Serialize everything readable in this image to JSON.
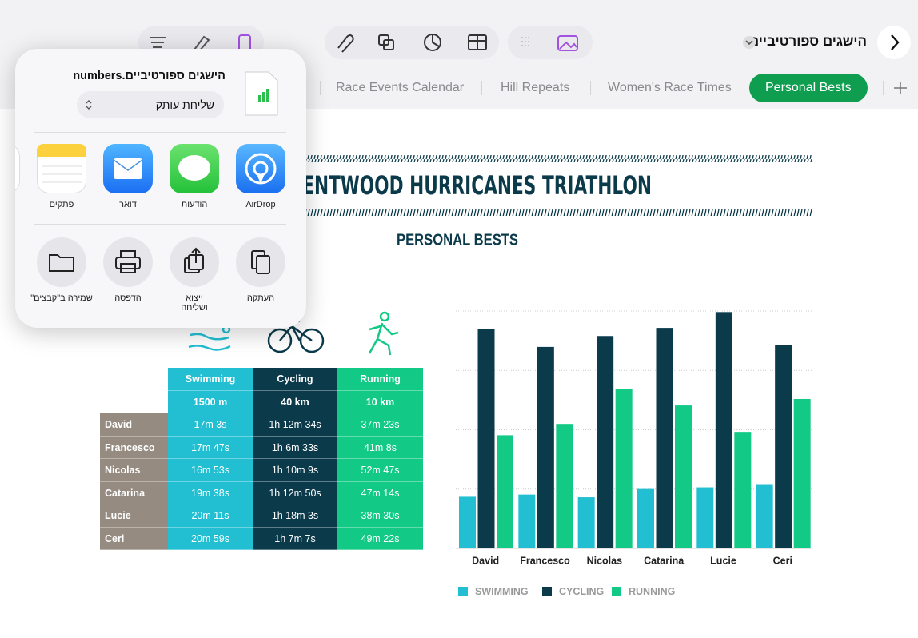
{
  "toolbar": {
    "document_title": "הישגים ספורטיביים"
  },
  "tabs": [
    "Race Events Calendar",
    "Hill Repeats",
    "Women's Race Times",
    "Personal Bests"
  ],
  "share_sheet": {
    "file_name": "הישגים ספורטיביים.numbers",
    "option": "שליחת עותק",
    "apps": [
      "AirDrop",
      "הודעות",
      "דואר",
      "פתקים"
    ],
    "actions": [
      "העתקה",
      "ייצוא ושליחה",
      "הדפסה",
      "שמירה ב\"קבצים\""
    ]
  },
  "sheet": {
    "title": "BRENTWOOD HURRICANES TRIATHLON",
    "subtitle": "PERSONAL BESTS"
  },
  "table": {
    "headers": [
      [
        "Swimming",
        "1500 m"
      ],
      [
        "Cycling",
        "40 km"
      ],
      [
        "Running",
        "10 km"
      ]
    ],
    "rows": [
      [
        "David",
        "17m 3s",
        "1h 12m 34s",
        "37m 23s"
      ],
      [
        "Francesco",
        "17m 47s",
        "1h 6m 33s",
        "41m 8s"
      ],
      [
        "Nicolas",
        "16m 53s",
        "1h 10m 9s",
        "52m 47s"
      ],
      [
        "Catarina",
        "19m 38s",
        "1h 12m 50s",
        "47m 14s"
      ],
      [
        "Lucie",
        "20m 11s",
        "1h 18m 3s",
        "38m 30s"
      ],
      [
        "Ceri",
        "20m 59s",
        "1h 7m 7s",
        "49m 22s"
      ]
    ]
  },
  "chart_data": {
    "type": "bar",
    "categories": [
      "David",
      "Francesco",
      "Nicolas",
      "Catarina",
      "Lucie",
      "Ceri"
    ],
    "series": [
      {
        "name": "SWIMMING",
        "color": "#22bfd3",
        "values": [
          17.05,
          17.78,
          16.88,
          19.63,
          20.18,
          20.98
        ]
      },
      {
        "name": "CYCLING",
        "color": "#0b3a4b",
        "values": [
          72.57,
          66.55,
          70.15,
          72.83,
          78.05,
          67.12
        ]
      },
      {
        "name": "RUNNING",
        "color": "#13c986",
        "values": [
          37.38,
          41.13,
          52.78,
          47.23,
          38.5,
          49.37
        ]
      }
    ],
    "ylim": [
      0,
      78.4
    ],
    "yticks": [
      0,
      19.6,
      39.2,
      58.8,
      78.4
    ],
    "grid": true
  }
}
